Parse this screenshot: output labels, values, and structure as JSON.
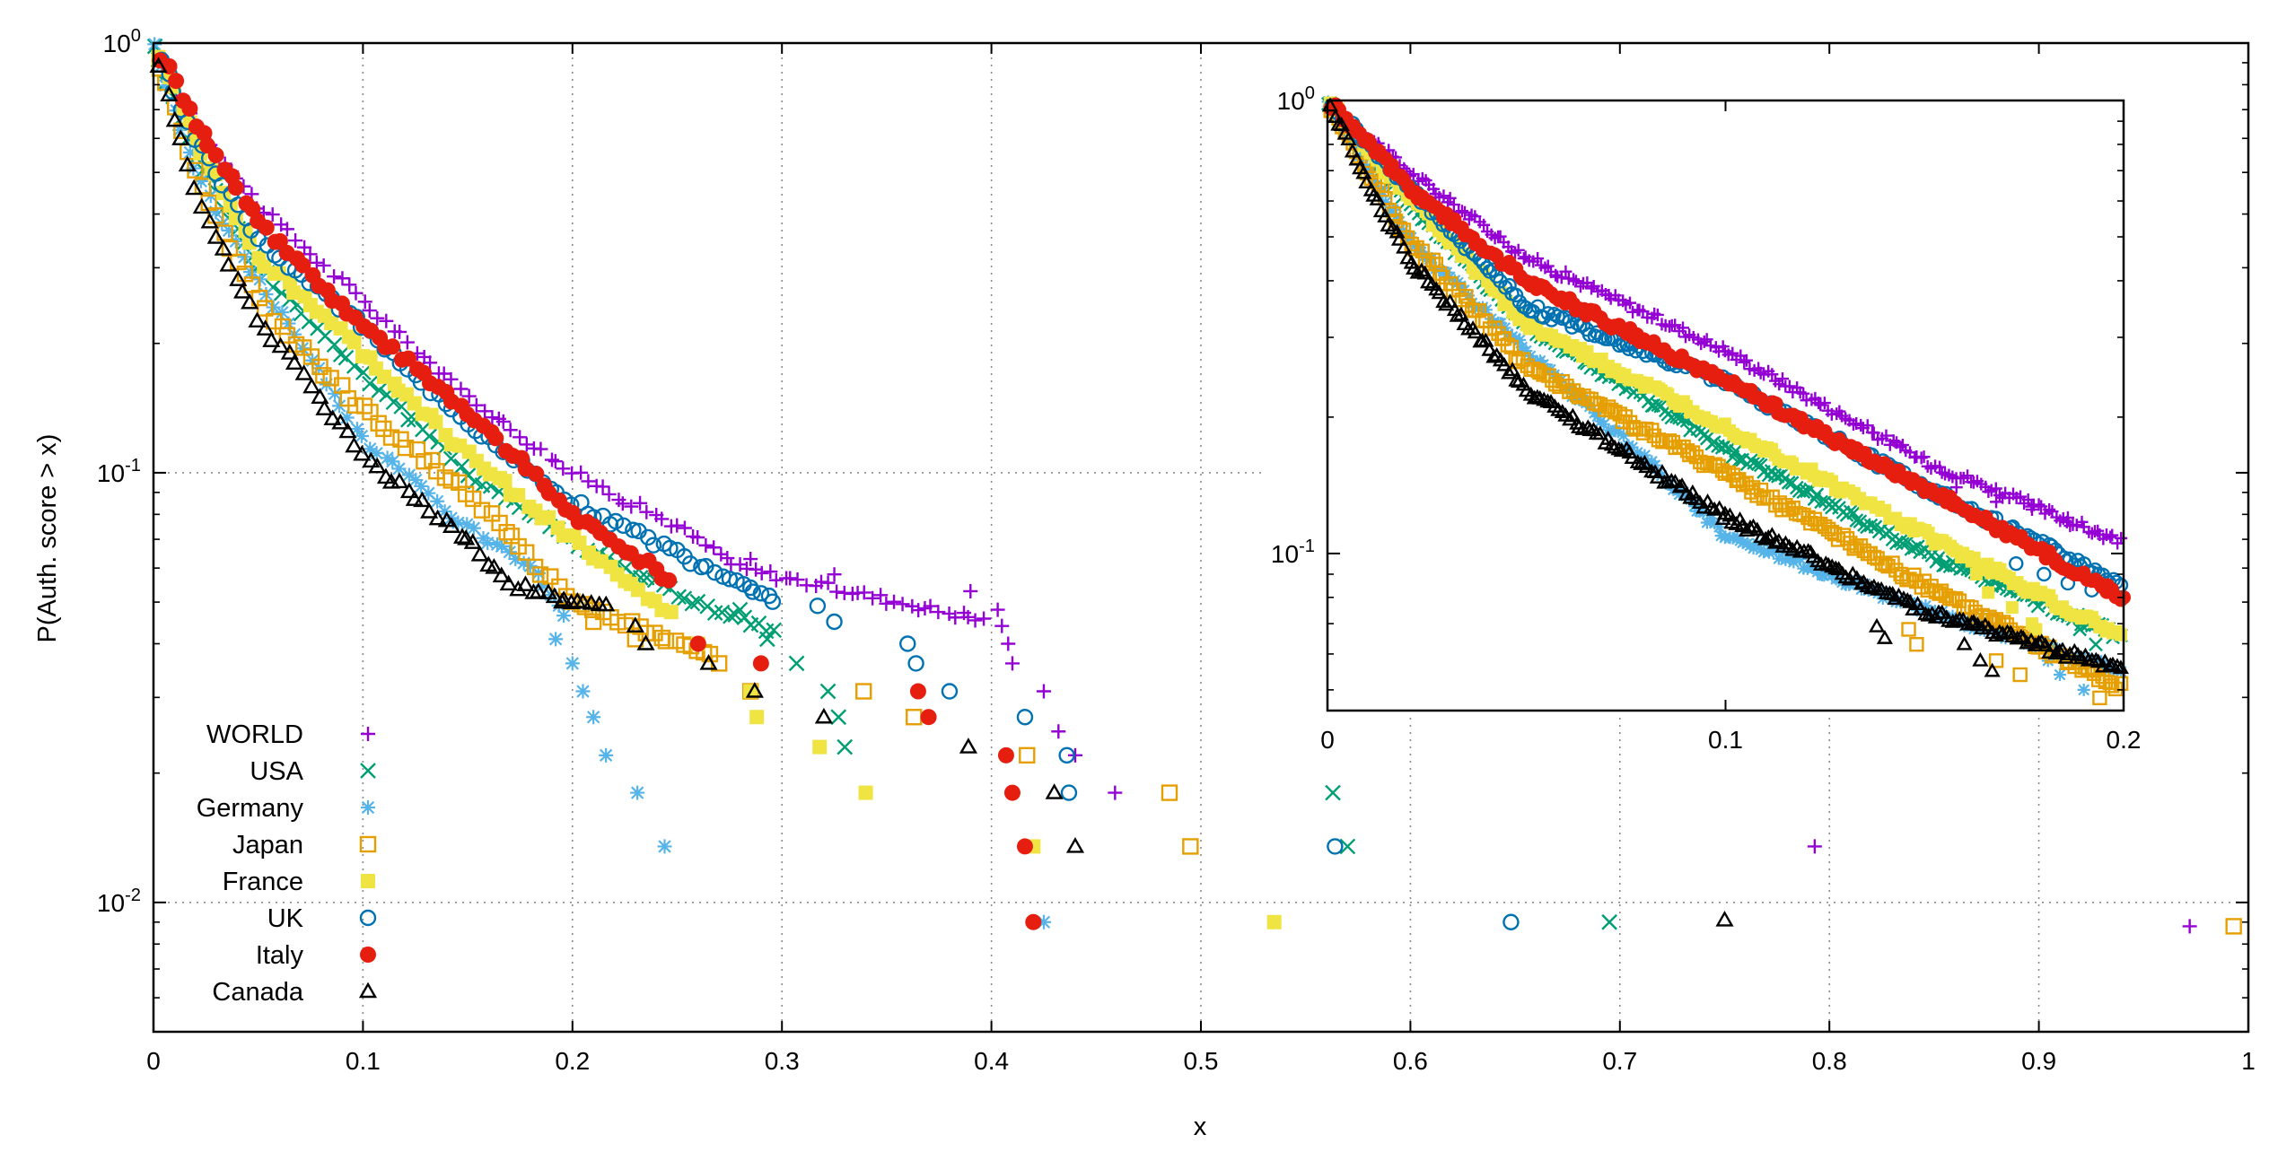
{
  "chart_data": [
    {
      "id": "main",
      "type": "scatter",
      "xlabel": "x",
      "ylabel": "P(Auth. score > x)",
      "xlim": [
        0,
        1
      ],
      "ylim": [
        0.005,
        1
      ],
      "yscale": "log",
      "grid": true,
      "legend_position": "bottom-left",
      "x_ticks": [
        0,
        0.1,
        0.2,
        0.3,
        0.4,
        0.5,
        0.6,
        0.7,
        0.8,
        0.9,
        1
      ],
      "x_tick_labels": [
        "0",
        "0.1",
        "0.2",
        "0.3",
        "0.4",
        "0.5",
        "0.6",
        "0.7",
        "0.8",
        "0.9",
        "1"
      ],
      "y_ticks": [
        {
          "value": 1,
          "mantissa": "10",
          "exponent": "0"
        },
        {
          "value": 0.1,
          "mantissa": "10",
          "exponent": "-1"
        },
        {
          "value": 0.01,
          "mantissa": "10",
          "exponent": "-2"
        }
      ],
      "series_style": [
        {
          "name": "WORLD",
          "marker": "plus",
          "color": "#9400D3"
        },
        {
          "name": "USA",
          "marker": "cross",
          "color": "#009E73"
        },
        {
          "name": "Germany",
          "marker": "star",
          "color": "#56B4E9"
        },
        {
          "name": "Japan",
          "marker": "square-open",
          "color": "#E69F00"
        },
        {
          "name": "France",
          "marker": "square-filled",
          "color": "#F0E442"
        },
        {
          "name": "UK",
          "marker": "circle-open",
          "color": "#0072B2"
        },
        {
          "name": "Italy",
          "marker": "circle-filled",
          "color": "#E51E10"
        },
        {
          "name": "Canada",
          "marker": "triangle-open",
          "color": "#000000"
        }
      ],
      "series": [
        {
          "name": "WORLD",
          "anchors": [
            [
              0,
              1
            ],
            [
              0.02,
              0.65
            ],
            [
              0.05,
              0.42
            ],
            [
              0.1,
              0.25
            ],
            [
              0.15,
              0.15
            ],
            [
              0.2,
              0.1
            ],
            [
              0.25,
              0.075
            ],
            [
              0.28,
              0.06
            ],
            [
              0.4,
              0.045
            ]
          ],
          "tail": [
            [
              0.285,
              0.063
            ],
            [
              0.325,
              0.058
            ],
            [
              0.39,
              0.053
            ],
            [
              0.403,
              0.048
            ],
            [
              0.405,
              0.044
            ],
            [
              0.408,
              0.04
            ],
            [
              0.41,
              0.036
            ],
            [
              0.425,
              0.031
            ],
            [
              0.432,
              0.025
            ],
            [
              0.44,
              0.022
            ],
            [
              0.459,
              0.018
            ],
            [
              0.793,
              0.0135
            ],
            [
              0.972,
              0.0088
            ]
          ]
        },
        {
          "name": "USA",
          "anchors": [
            [
              0,
              1
            ],
            [
              0.02,
              0.55
            ],
            [
              0.05,
              0.3
            ],
            [
              0.1,
              0.17
            ],
            [
              0.15,
              0.1
            ],
            [
              0.2,
              0.07
            ],
            [
              0.25,
              0.052
            ],
            [
              0.3,
              0.042
            ]
          ],
          "tail": [
            [
              0.28,
              0.048
            ],
            [
              0.293,
              0.041
            ],
            [
              0.307,
              0.036
            ],
            [
              0.322,
              0.031
            ],
            [
              0.327,
              0.027
            ],
            [
              0.33,
              0.023
            ],
            [
              0.563,
              0.018
            ],
            [
              0.57,
              0.0135
            ],
            [
              0.695,
              0.009
            ]
          ]
        },
        {
          "name": "Germany",
          "anchors": [
            [
              0,
              1
            ],
            [
              0.02,
              0.5
            ],
            [
              0.05,
              0.28
            ],
            [
              0.1,
              0.12
            ],
            [
              0.15,
              0.075
            ],
            [
              0.18,
              0.06
            ],
            [
              0.2,
              0.045
            ]
          ],
          "tail": [
            [
              0.192,
              0.041
            ],
            [
              0.2,
              0.036
            ],
            [
              0.205,
              0.031
            ],
            [
              0.21,
              0.027
            ],
            [
              0.216,
              0.022
            ],
            [
              0.231,
              0.018
            ],
            [
              0.244,
              0.0135
            ],
            [
              0.425,
              0.009
            ]
          ]
        },
        {
          "name": "Japan",
          "anchors": [
            [
              0,
              1
            ],
            [
              0.02,
              0.5
            ],
            [
              0.05,
              0.25
            ],
            [
              0.1,
              0.14
            ],
            [
              0.15,
              0.09
            ],
            [
              0.2,
              0.05
            ],
            [
              0.27,
              0.037
            ]
          ],
          "tail": [
            [
              0.21,
              0.045
            ],
            [
              0.23,
              0.041
            ],
            [
              0.27,
              0.036
            ],
            [
              0.285,
              0.031
            ],
            [
              0.339,
              0.031
            ],
            [
              0.363,
              0.027
            ],
            [
              0.417,
              0.022
            ],
            [
              0.485,
              0.018
            ],
            [
              0.495,
              0.0135
            ],
            [
              0.993,
              0.0088
            ]
          ]
        },
        {
          "name": "France",
          "anchors": [
            [
              0,
              1
            ],
            [
              0.02,
              0.6
            ],
            [
              0.05,
              0.32
            ],
            [
              0.1,
              0.19
            ],
            [
              0.15,
              0.11
            ],
            [
              0.2,
              0.07
            ],
            [
              0.25,
              0.045
            ]
          ],
          "tail": [
            [
              0.26,
              0.04
            ],
            [
              0.285,
              0.031
            ],
            [
              0.288,
              0.027
            ],
            [
              0.318,
              0.023
            ],
            [
              0.34,
              0.018
            ],
            [
              0.42,
              0.0135
            ],
            [
              0.535,
              0.009
            ]
          ]
        },
        {
          "name": "UK",
          "anchors": [
            [
              0,
              1
            ],
            [
              0.02,
              0.6
            ],
            [
              0.05,
              0.35
            ],
            [
              0.1,
              0.22
            ],
            [
              0.15,
              0.13
            ],
            [
              0.2,
              0.085
            ],
            [
              0.25,
              0.065
            ],
            [
              0.3,
              0.05
            ]
          ],
          "tail": [
            [
              0.285,
              0.054
            ],
            [
              0.317,
              0.049
            ],
            [
              0.325,
              0.045
            ],
            [
              0.36,
              0.04
            ],
            [
              0.364,
              0.036
            ],
            [
              0.38,
              0.031
            ],
            [
              0.416,
              0.027
            ],
            [
              0.436,
              0.022
            ],
            [
              0.437,
              0.018
            ],
            [
              0.564,
              0.0135
            ],
            [
              0.648,
              0.009
            ]
          ]
        },
        {
          "name": "Italy",
          "anchors": [
            [
              0,
              1
            ],
            [
              0.02,
              0.65
            ],
            [
              0.05,
              0.38
            ],
            [
              0.1,
              0.22
            ],
            [
              0.15,
              0.14
            ],
            [
              0.2,
              0.08
            ],
            [
              0.25,
              0.055
            ]
          ],
          "tail": [
            [
              0.26,
              0.04
            ],
            [
              0.29,
              0.036
            ],
            [
              0.365,
              0.031
            ],
            [
              0.37,
              0.027
            ],
            [
              0.407,
              0.022
            ],
            [
              0.41,
              0.018
            ],
            [
              0.416,
              0.0135
            ],
            [
              0.42,
              0.009
            ]
          ]
        },
        {
          "name": "Canada",
          "anchors": [
            [
              0,
              1
            ],
            [
              0.02,
              0.45
            ],
            [
              0.05,
              0.23
            ],
            [
              0.1,
              0.11
            ],
            [
              0.15,
              0.07
            ],
            [
              0.17,
              0.055
            ],
            [
              0.22,
              0.048
            ]
          ],
          "tail": [
            [
              0.195,
              0.05
            ],
            [
              0.23,
              0.044
            ],
            [
              0.235,
              0.04
            ],
            [
              0.265,
              0.036
            ],
            [
              0.287,
              0.031
            ],
            [
              0.32,
              0.027
            ],
            [
              0.389,
              0.023
            ],
            [
              0.43,
              0.018
            ],
            [
              0.44,
              0.0135
            ],
            [
              0.75,
              0.0091
            ]
          ]
        }
      ]
    },
    {
      "id": "inset",
      "type": "scatter",
      "xlabel": "",
      "ylabel": "",
      "xlim": [
        0,
        0.2
      ],
      "ylim": [
        0.045,
        1
      ],
      "yscale": "log",
      "grid": false,
      "x_ticks": [
        0,
        0.1,
        0.2
      ],
      "x_tick_labels": [
        "0",
        "0.1",
        "0.2"
      ],
      "y_ticks": [
        {
          "value": 1,
          "mantissa": "10",
          "exponent": "0"
        },
        {
          "value": 0.1,
          "mantissa": "10",
          "exponent": "-1"
        }
      ],
      "series": [
        {
          "name": "WORLD",
          "anchors": [
            [
              0,
              1
            ],
            [
              0.02,
              0.7
            ],
            [
              0.05,
              0.45
            ],
            [
              0.1,
              0.28
            ],
            [
              0.15,
              0.16
            ],
            [
              0.2,
              0.105
            ]
          ],
          "tail": [
            [
              0.194,
              0.11
            ],
            [
              0.186,
              0.12
            ],
            [
              0.177,
              0.125
            ],
            [
              0.168,
              0.13
            ],
            [
              0.158,
              0.14
            ]
          ]
        },
        {
          "name": "USA",
          "anchors": [
            [
              0,
              1
            ],
            [
              0.02,
              0.6
            ],
            [
              0.05,
              0.32
            ],
            [
              0.1,
              0.17
            ],
            [
              0.15,
              0.1
            ],
            [
              0.2,
              0.065
            ]
          ],
          "tail": [
            [
              0.162,
              0.095
            ],
            [
              0.168,
              0.088
            ],
            [
              0.177,
              0.081
            ],
            [
              0.184,
              0.074
            ],
            [
              0.189,
              0.068
            ],
            [
              0.193,
              0.063
            ]
          ]
        },
        {
          "name": "Germany",
          "anchors": [
            [
              0,
              1
            ],
            [
              0.02,
              0.5
            ],
            [
              0.05,
              0.28
            ],
            [
              0.1,
              0.11
            ],
            [
              0.15,
              0.075
            ],
            [
              0.2,
              0.055
            ]
          ],
          "tail": [
            [
              0.176,
              0.063
            ],
            [
              0.181,
              0.058
            ],
            [
              0.184,
              0.054
            ],
            [
              0.19,
              0.05
            ]
          ]
        },
        {
          "name": "Japan",
          "anchors": [
            [
              0,
              1
            ],
            [
              0.02,
              0.5
            ],
            [
              0.05,
              0.26
            ],
            [
              0.1,
              0.15
            ],
            [
              0.15,
              0.085
            ],
            [
              0.2,
              0.05
            ]
          ],
          "tail": [
            [
              0.146,
              0.068
            ],
            [
              0.148,
              0.063
            ],
            [
              0.168,
              0.058
            ],
            [
              0.174,
              0.054
            ],
            [
              0.194,
              0.048
            ]
          ]
        },
        {
          "name": "France",
          "anchors": [
            [
              0,
              1
            ],
            [
              0.02,
              0.62
            ],
            [
              0.05,
              0.32
            ],
            [
              0.1,
              0.19
            ],
            [
              0.15,
              0.11
            ],
            [
              0.2,
              0.065
            ]
          ],
          "tail": [
            [
              0.163,
              0.09
            ],
            [
              0.166,
              0.082
            ],
            [
              0.172,
              0.076
            ],
            [
              0.177,
              0.07
            ],
            [
              0.178,
              0.068
            ]
          ]
        },
        {
          "name": "UK",
          "anchors": [
            [
              0,
              1
            ],
            [
              0.02,
              0.65
            ],
            [
              0.05,
              0.35
            ],
            [
              0.1,
              0.24
            ],
            [
              0.15,
              0.14
            ],
            [
              0.2,
              0.085
            ]
          ],
          "tail": [
            [
              0.173,
              0.095
            ],
            [
              0.18,
              0.09
            ],
            [
              0.186,
              0.086
            ],
            [
              0.192,
              0.083
            ]
          ]
        },
        {
          "name": "Italy",
          "anchors": [
            [
              0,
              1
            ],
            [
              0.02,
              0.65
            ],
            [
              0.05,
              0.4
            ],
            [
              0.1,
              0.24
            ],
            [
              0.15,
              0.14
            ],
            [
              0.2,
              0.08
            ]
          ],
          "tail": [
            [
              0.183,
              0.095
            ],
            [
              0.19,
              0.09
            ],
            [
              0.196,
              0.085
            ],
            [
              0.2,
              0.08
            ]
          ]
        },
        {
          "name": "Canada",
          "anchors": [
            [
              0,
              1
            ],
            [
              0.02,
              0.45
            ],
            [
              0.05,
              0.23
            ],
            [
              0.1,
              0.12
            ],
            [
              0.15,
              0.075
            ],
            [
              0.2,
              0.055
            ]
          ],
          "tail": [
            [
              0.138,
              0.069
            ],
            [
              0.14,
              0.065
            ],
            [
              0.16,
              0.063
            ],
            [
              0.164,
              0.058
            ],
            [
              0.167,
              0.055
            ]
          ]
        }
      ]
    }
  ]
}
